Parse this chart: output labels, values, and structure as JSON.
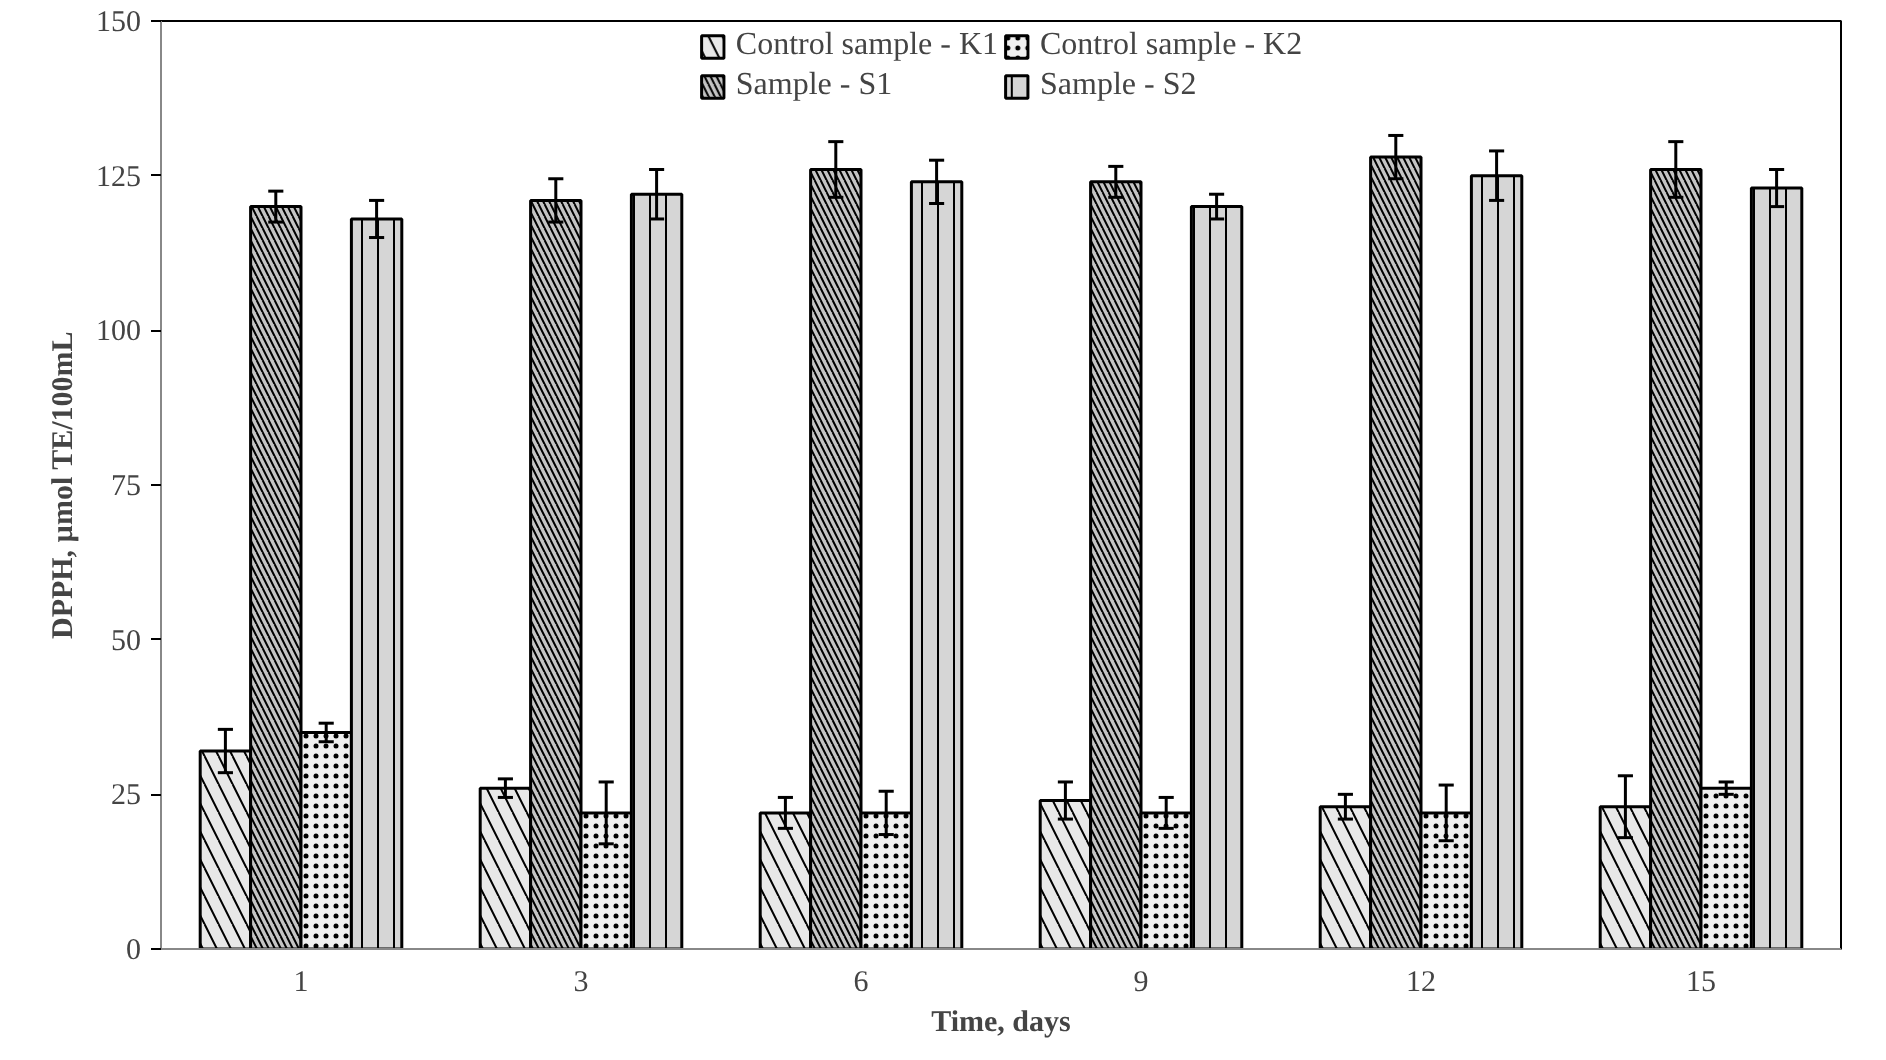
{
  "chart_data": {
    "type": "bar",
    "xlabel": "Time, days",
    "ylabel": "DPPH, µmol TE/100mL",
    "categories": [
      "1",
      "3",
      "6",
      "9",
      "12",
      "15"
    ],
    "series": [
      {
        "name": "Control sample - K1",
        "color": "#e8e8e8",
        "values": [
          32,
          26,
          22,
          24,
          23,
          23
        ],
        "errors": [
          3.5,
          1.5,
          2.5,
          3,
          2,
          5
        ]
      },
      {
        "name": "Sample - S1",
        "color": "#c4c4c4",
        "values": [
          120,
          121,
          126,
          124,
          128,
          126
        ],
        "errors": [
          2.5,
          3.5,
          4.5,
          2.5,
          3.5,
          4.5
        ]
      },
      {
        "name": "Control sample - K2",
        "color": "#f0f0f0",
        "values": [
          35,
          22,
          22,
          22,
          22,
          26
        ],
        "errors": [
          1.5,
          5,
          3.5,
          2.5,
          4.5,
          1
        ]
      },
      {
        "name": "Sample - S2",
        "color": "#d6d6d6",
        "values": [
          118,
          122,
          124,
          120,
          125,
          123
        ],
        "errors": [
          3,
          4,
          3.5,
          2,
          4,
          3
        ]
      }
    ],
    "ylim": [
      0,
      150
    ],
    "yticks": [
      0,
      25,
      50,
      75,
      100,
      125,
      150
    ],
    "grid": false,
    "legend": "top"
  }
}
